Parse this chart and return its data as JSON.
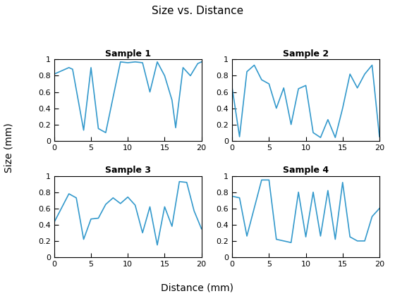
{
  "title": "Size vs. Distance",
  "xlabel": "Distance (mm)",
  "ylabel": "Size (mm)",
  "xlim": [
    0,
    20
  ],
  "ylim": [
    0,
    1
  ],
  "xticks": [
    0,
    5,
    10,
    15,
    20
  ],
  "yticks": [
    0,
    0.2,
    0.4,
    0.6,
    0.8,
    1
  ],
  "ytick_labels": [
    "0",
    "0.2",
    "0.4",
    "0.6",
    "0.8",
    "1"
  ],
  "line_color": "#3399cc",
  "line_width": 1.2,
  "title_fontsize": 11,
  "subtitle_fontsize": 9,
  "axis_label_fontsize": 10,
  "tick_fontsize": 8,
  "subplots": [
    {
      "title": "Sample 1",
      "x": [
        0,
        2,
        2.5,
        4,
        5,
        6,
        7,
        9,
        10,
        11,
        12,
        13,
        14,
        15,
        16,
        16.5,
        17.5,
        18.5,
        19.5,
        20
      ],
      "y": [
        0.82,
        0.9,
        0.88,
        0.13,
        0.9,
        0.15,
        0.1,
        0.97,
        0.96,
        0.97,
        0.96,
        0.6,
        0.97,
        0.8,
        0.5,
        0.16,
        0.9,
        0.8,
        0.95,
        0.97
      ]
    },
    {
      "title": "Sample 2",
      "x": [
        0,
        1,
        2,
        3,
        4,
        5,
        6,
        7,
        8,
        9,
        10,
        11,
        12,
        13,
        14,
        15,
        16,
        17,
        18,
        19,
        20
      ],
      "y": [
        0.65,
        0.05,
        0.85,
        0.93,
        0.75,
        0.7,
        0.4,
        0.65,
        0.2,
        0.64,
        0.68,
        0.1,
        0.04,
        0.26,
        0.04,
        0.4,
        0.82,
        0.65,
        0.82,
        0.93,
        0.05
      ]
    },
    {
      "title": "Sample 3",
      "x": [
        0,
        2,
        3,
        4,
        5,
        6,
        7,
        8,
        9,
        10,
        11,
        12,
        13,
        14,
        15,
        16,
        17,
        18,
        19,
        20
      ],
      "y": [
        0.43,
        0.78,
        0.73,
        0.22,
        0.47,
        0.48,
        0.65,
        0.73,
        0.66,
        0.74,
        0.64,
        0.3,
        0.62,
        0.15,
        0.62,
        0.38,
        0.93,
        0.92,
        0.57,
        0.35
      ]
    },
    {
      "title": "Sample 4",
      "x": [
        0,
        1,
        2,
        4,
        5,
        6,
        7,
        8,
        9,
        10,
        11,
        12,
        13,
        14,
        15,
        16,
        17,
        18,
        19,
        20
      ],
      "y": [
        0.75,
        0.73,
        0.26,
        0.95,
        0.95,
        0.22,
        0.2,
        0.18,
        0.8,
        0.25,
        0.8,
        0.26,
        0.82,
        0.22,
        0.92,
        0.25,
        0.2,
        0.2,
        0.5,
        0.6
      ]
    }
  ]
}
